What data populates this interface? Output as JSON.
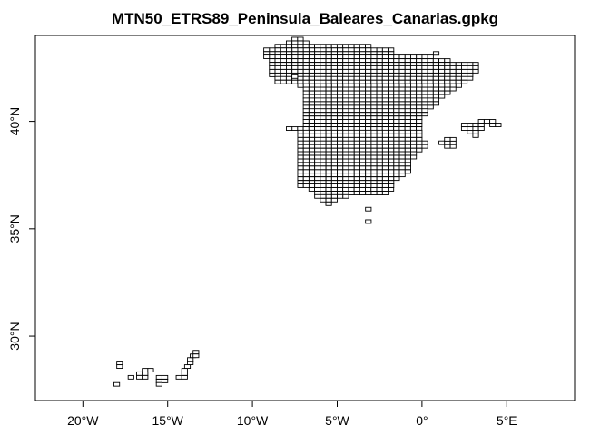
{
  "title": "MTN50_ETRS89_Peninsula_Baleares_Canarias.gpkg",
  "chart_data": {
    "type": "map",
    "title": "MTN50_ETRS89_Peninsula_Baleares_Canarias.gpkg",
    "xlim": [
      -22.8,
      9.0
    ],
    "ylim": [
      27.0,
      44.0
    ],
    "x_ticks": [
      {
        "value": -20,
        "label": "20°W"
      },
      {
        "value": -15,
        "label": "15°W"
      },
      {
        "value": -10,
        "label": "10°W"
      },
      {
        "value": -5,
        "label": "5°W"
      },
      {
        "value": 0,
        "label": "0°"
      },
      {
        "value": 5,
        "label": "5°E"
      }
    ],
    "y_ticks": [
      {
        "value": 30,
        "label": "30°N"
      },
      {
        "value": 35,
        "label": "35°N"
      },
      {
        "value": 40,
        "label": "40°N"
      }
    ],
    "grid": false,
    "sheet_size": {
      "lon": 0.3333,
      "lat": 0.1667
    },
    "peninsula_rows": [
      {
        "lat": 43.75,
        "lon_min": -7.67,
        "lon_max": -7.0
      },
      {
        "lat": 43.58,
        "lon_min": -8.0,
        "lon_max": -6.67
      },
      {
        "lat": 43.42,
        "lon_min": -8.67,
        "lon_max": -3.0
      },
      {
        "lat": 43.25,
        "lon_min": -9.33,
        "lon_max": -1.67
      },
      {
        "lat": 43.08,
        "lon_min": -9.33,
        "lon_max": -1.67
      },
      {
        "lat": 42.92,
        "lon_min": -9.33,
        "lon_max": 0.67
      },
      {
        "lat": 42.75,
        "lon_min": -9.0,
        "lon_max": 1.67
      },
      {
        "lat": 42.58,
        "lon_min": -9.0,
        "lon_max": 3.33
      },
      {
        "lat": 42.42,
        "lon_min": -9.0,
        "lon_max": 3.33
      },
      {
        "lat": 42.25,
        "lon_min": -9.0,
        "lon_max": 3.33
      },
      {
        "lat": 42.08,
        "lon_min": -9.0,
        "lon_max": 3.0
      },
      {
        "lat": 41.92,
        "lon_min": -8.67,
        "lon_max": 3.0
      },
      {
        "lat": 41.75,
        "lon_min": -8.67,
        "lon_max": 2.67
      },
      {
        "lat": 41.58,
        "lon_min": -7.33,
        "lon_max": 2.33
      },
      {
        "lat": 41.42,
        "lon_min": -7.0,
        "lon_max": 2.0
      },
      {
        "lat": 41.25,
        "lon_min": -7.0,
        "lon_max": 1.67
      },
      {
        "lat": 41.08,
        "lon_min": -7.0,
        "lon_max": 1.33
      },
      {
        "lat": 40.92,
        "lon_min": -7.0,
        "lon_max": 1.0
      },
      {
        "lat": 40.75,
        "lon_min": -7.0,
        "lon_max": 1.0
      },
      {
        "lat": 40.58,
        "lon_min": -7.0,
        "lon_max": 0.67
      },
      {
        "lat": 40.42,
        "lon_min": -7.0,
        "lon_max": 0.33
      },
      {
        "lat": 40.25,
        "lon_min": -7.0,
        "lon_max": 0.33
      },
      {
        "lat": 40.08,
        "lon_min": -7.0,
        "lon_max": 0.0
      },
      {
        "lat": 39.92,
        "lon_min": -7.0,
        "lon_max": 0.0
      },
      {
        "lat": 39.75,
        "lon_min": -7.0,
        "lon_max": 0.0
      },
      {
        "lat": 39.58,
        "lon_min": -7.67,
        "lon_max": 0.0
      },
      {
        "lat": 39.42,
        "lon_min": -7.33,
        "lon_max": 0.0
      },
      {
        "lat": 39.25,
        "lon_min": -7.33,
        "lon_max": 0.0
      },
      {
        "lat": 39.08,
        "lon_min": -7.33,
        "lon_max": 0.0
      },
      {
        "lat": 38.92,
        "lon_min": -7.33,
        "lon_max": 0.33
      },
      {
        "lat": 38.75,
        "lon_min": -7.33,
        "lon_max": 0.33
      },
      {
        "lat": 38.58,
        "lon_min": -7.33,
        "lon_max": 0.0
      },
      {
        "lat": 38.42,
        "lon_min": -7.33,
        "lon_max": -0.33
      },
      {
        "lat": 38.25,
        "lon_min": -7.33,
        "lon_max": -0.33
      },
      {
        "lat": 38.08,
        "lon_min": -7.33,
        "lon_max": -0.67
      },
      {
        "lat": 37.92,
        "lon_min": -7.33,
        "lon_max": -0.67
      },
      {
        "lat": 37.75,
        "lon_min": -7.33,
        "lon_max": -0.67
      },
      {
        "lat": 37.58,
        "lon_min": -7.33,
        "lon_max": -0.67
      },
      {
        "lat": 37.42,
        "lon_min": -7.33,
        "lon_max": -1.0
      },
      {
        "lat": 37.25,
        "lon_min": -7.33,
        "lon_max": -1.33
      },
      {
        "lat": 37.08,
        "lon_min": -7.33,
        "lon_max": -1.67
      },
      {
        "lat": 36.92,
        "lon_min": -7.33,
        "lon_max": -1.67
      },
      {
        "lat": 36.75,
        "lon_min": -6.67,
        "lon_max": -1.67
      },
      {
        "lat": 36.58,
        "lon_min": -6.33,
        "lon_max": -2.0
      },
      {
        "lat": 36.42,
        "lon_min": -6.33,
        "lon_max": -4.33
      },
      {
        "lat": 36.25,
        "lon_min": -6.0,
        "lon_max": -5.0
      },
      {
        "lat": 36.08,
        "lon_min": -5.67,
        "lon_max": -5.33
      }
    ],
    "extra_sheets": [
      {
        "lon": -8.0,
        "lat": 39.58
      },
      {
        "lon": -7.67,
        "lat": 42.0
      },
      {
        "lon": 0.67,
        "lat": 43.08
      },
      {
        "lon": 1.0,
        "lat": 38.92
      },
      {
        "lon": 1.33,
        "lat": 38.75
      },
      {
        "lon": 1.33,
        "lat": 38.92
      },
      {
        "lon": 1.67,
        "lat": 38.75
      },
      {
        "lon": 1.67,
        "lat": 38.92
      },
      {
        "lon": 1.33,
        "lat": 39.08
      },
      {
        "lon": 1.67,
        "lat": 39.08
      },
      {
        "lon": 2.33,
        "lat": 39.58
      },
      {
        "lon": 2.33,
        "lat": 39.75
      },
      {
        "lon": 2.67,
        "lat": 39.42
      },
      {
        "lon": 2.67,
        "lat": 39.58
      },
      {
        "lon": 2.67,
        "lat": 39.75
      },
      {
        "lon": 3.0,
        "lat": 39.25
      },
      {
        "lon": 3.0,
        "lat": 39.42
      },
      {
        "lon": 3.0,
        "lat": 39.58
      },
      {
        "lon": 3.0,
        "lat": 39.75
      },
      {
        "lon": 3.33,
        "lat": 39.58
      },
      {
        "lon": 3.33,
        "lat": 39.75
      },
      {
        "lon": 3.33,
        "lat": 39.92
      },
      {
        "lon": 3.67,
        "lat": 39.92
      },
      {
        "lon": 4.0,
        "lat": 39.75
      },
      {
        "lon": 4.0,
        "lat": 39.92
      },
      {
        "lon": 4.33,
        "lat": 39.75
      },
      {
        "lon": -3.33,
        "lat": 35.83
      },
      {
        "lon": -3.33,
        "lat": 35.25
      }
    ],
    "canarias_sheets": [
      {
        "lon": -18.17,
        "lat": 27.67
      },
      {
        "lon": -18.0,
        "lat": 28.5
      },
      {
        "lon": -18.0,
        "lat": 28.67
      },
      {
        "lon": -17.33,
        "lat": 28.0
      },
      {
        "lon": -16.83,
        "lat": 28.17
      },
      {
        "lon": -16.83,
        "lat": 28.0
      },
      {
        "lon": -16.5,
        "lat": 28.17
      },
      {
        "lon": -16.5,
        "lat": 28.33
      },
      {
        "lon": -16.17,
        "lat": 28.33
      },
      {
        "lon": -16.5,
        "lat": 28.0
      },
      {
        "lon": -15.67,
        "lat": 27.83
      },
      {
        "lon": -15.67,
        "lat": 28.0
      },
      {
        "lon": -15.67,
        "lat": 27.67
      },
      {
        "lon": -15.33,
        "lat": 27.83
      },
      {
        "lon": -15.33,
        "lat": 28.0
      },
      {
        "lon": -14.5,
        "lat": 28.0
      },
      {
        "lon": -14.17,
        "lat": 28.0
      },
      {
        "lon": -14.17,
        "lat": 28.17
      },
      {
        "lon": -14.17,
        "lat": 28.33
      },
      {
        "lon": -14.0,
        "lat": 28.5
      },
      {
        "lon": -13.83,
        "lat": 28.67
      },
      {
        "lon": -13.83,
        "lat": 28.83
      },
      {
        "lon": -13.67,
        "lat": 29.0
      },
      {
        "lon": -13.5,
        "lat": 29.17
      },
      {
        "lon": -13.5,
        "lat": 29.0
      }
    ]
  }
}
